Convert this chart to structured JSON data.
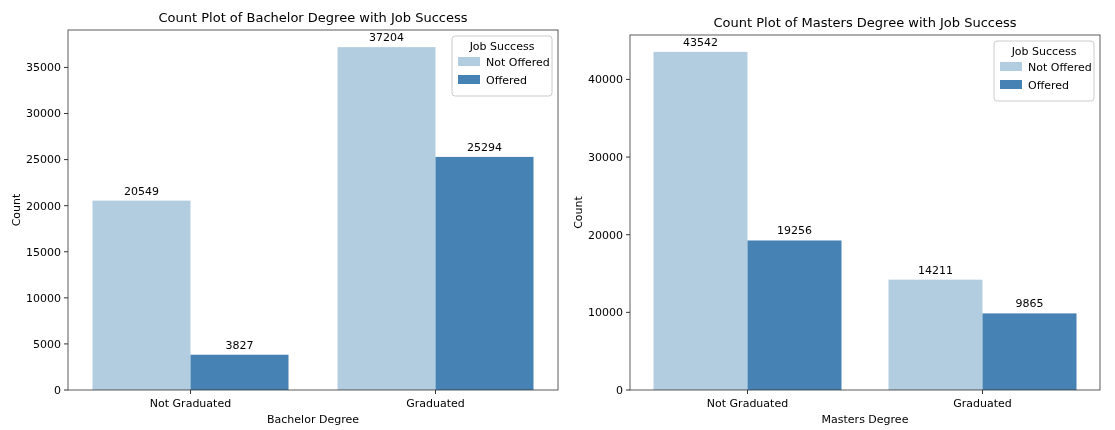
{
  "chart_data": [
    {
      "type": "bar",
      "title": "Count Plot of Bachelor Degree with Job Success",
      "xlabel": "Bachelor Degree",
      "ylabel": "Count",
      "categories": [
        "Not Graduated",
        "Graduated"
      ],
      "series": [
        {
          "name": "Not Offered",
          "color": "#b3cde0",
          "values": [
            20549,
            37204
          ]
        },
        {
          "name": "Offered",
          "color": "#4682b4",
          "values": [
            3827,
            25294
          ]
        }
      ],
      "ylim": [
        0,
        39064
      ],
      "yticks": [
        0,
        5000,
        10000,
        15000,
        20000,
        25000,
        30000,
        35000
      ],
      "data_labels": true,
      "legend": "top right",
      "legend_title": "Job Success"
    },
    {
      "type": "bar",
      "title": "Count Plot of  Masters Degree with Job Success",
      "xlabel": "Masters Degree",
      "ylabel": "Count",
      "categories": [
        "Not Graduated",
        "Graduated"
      ],
      "series": [
        {
          "name": "Not Offered",
          "color": "#b3cde0",
          "values": [
            43542,
            14211
          ]
        },
        {
          "name": "Offered",
          "color": "#4682b4",
          "values": [
            19256,
            9865
          ]
        }
      ],
      "ylim": [
        0,
        45719
      ],
      "yticks": [
        0,
        10000,
        20000,
        30000,
        40000
      ],
      "data_labels": true,
      "legend": "top right",
      "legend_title": "Job Success"
    }
  ]
}
